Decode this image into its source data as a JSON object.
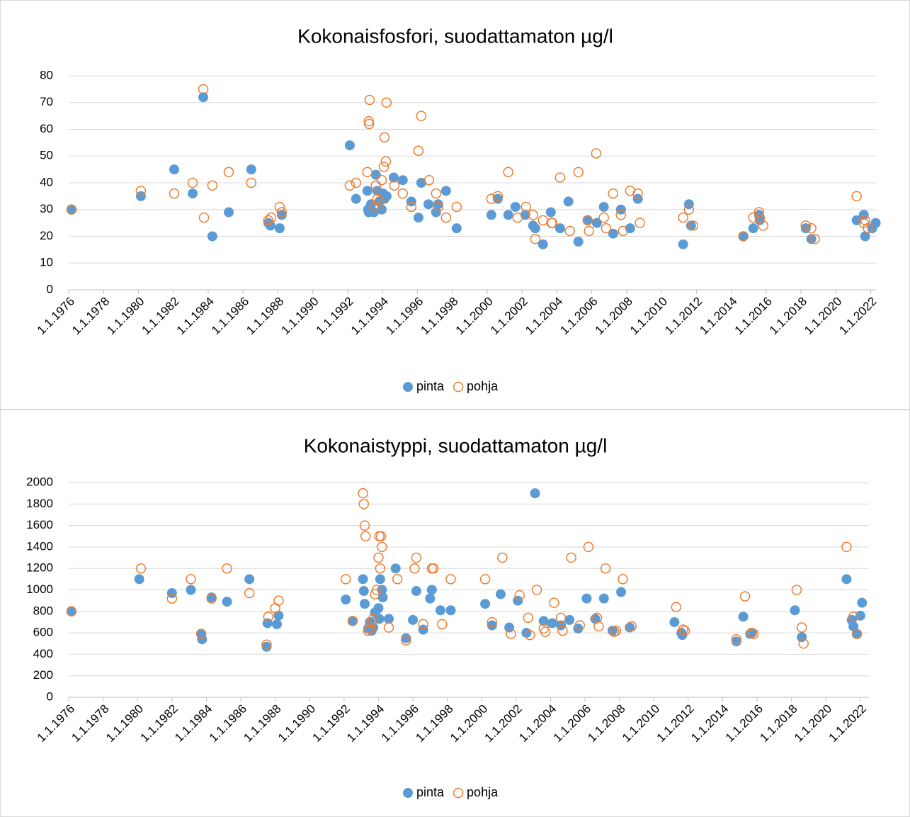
{
  "chart_data": [
    {
      "type": "scatter",
      "title": "Kokonaisfosfori, suodattamaton µg/l",
      "xlim": [
        1976,
        2022.3
      ],
      "ylim": [
        0,
        80
      ],
      "yticks": [
        0,
        10,
        20,
        30,
        40,
        50,
        60,
        70,
        80
      ],
      "grid": true,
      "legend": "bottom",
      "xticks": [
        {
          "value": 1976,
          "label": "1.1.1976"
        },
        {
          "value": 1978,
          "label": "1.1.1978"
        },
        {
          "value": 1980,
          "label": "1.1.1980"
        },
        {
          "value": 1982,
          "label": "1.1.1982"
        },
        {
          "value": 1984,
          "label": "1.1.1984"
        },
        {
          "value": 1986,
          "label": "1.1.1986"
        },
        {
          "value": 1988,
          "label": "1.1.1988"
        },
        {
          "value": 1990,
          "label": "1.1.1990"
        },
        {
          "value": 1992,
          "label": "1.1.1992"
        },
        {
          "value": 1994,
          "label": "1.1.1994"
        },
        {
          "value": 1996,
          "label": "1.1.1996"
        },
        {
          "value": 1998,
          "label": "1.1.1998"
        },
        {
          "value": 2000,
          "label": "1.1.2000"
        },
        {
          "value": 2002,
          "label": "1.1.2002"
        },
        {
          "value": 2004,
          "label": "1.1.2004"
        },
        {
          "value": 2006,
          "label": "1.1.2006"
        },
        {
          "value": 2008,
          "label": "1.1.2008"
        },
        {
          "value": 2010,
          "label": "1.1.2010"
        },
        {
          "value": 2012,
          "label": "1.1.2012"
        },
        {
          "value": 2014,
          "label": "1.1.2014"
        },
        {
          "value": 2016,
          "label": "1.1.2016"
        },
        {
          "value": 2018,
          "label": "1.1.2018"
        },
        {
          "value": 2020,
          "label": "1.1.2020"
        },
        {
          "value": 2022,
          "label": "1.1.2022"
        }
      ],
      "series": [
        {
          "name": "pinta",
          "color": "#5b9bd5",
          "marker": "filled",
          "x": [
            1976.16,
            1980.14,
            1982.05,
            1983.11,
            1983.72,
            1984.24,
            1985.18,
            1986.47,
            1987.45,
            1987.57,
            1988.1,
            1988.22,
            1992.12,
            1992.48,
            1993.13,
            1993.17,
            1993.21,
            1993.34,
            1993.5,
            1993.62,
            1993.7,
            1993.82,
            1993.95,
            1994.03,
            1994.11,
            1994.23,
            1994.64,
            1995.16,
            1995.65,
            1996.06,
            1996.22,
            1996.63,
            1997.07,
            1997.19,
            1997.64,
            1998.25,
            2000.24,
            2000.61,
            2001.21,
            2001.62,
            2002.19,
            2002.63,
            2002.76,
            2003.2,
            2003.65,
            2004.18,
            2004.66,
            2005.23,
            2005.76,
            2006.29,
            2006.69,
            2007.22,
            2007.67,
            2008.2,
            2008.64,
            2011.24,
            2011.57,
            2011.69,
            2014.69,
            2015.26,
            2015.59,
            2015.63,
            2018.27,
            2018.59,
            2021.19,
            2021.6,
            2021.68,
            2022.08,
            2022.28
          ],
          "values": [
            30,
            35,
            45,
            36,
            72,
            20,
            29,
            45,
            25,
            24,
            23,
            28,
            54,
            34,
            37,
            30,
            29,
            32,
            29,
            43,
            37,
            33,
            30,
            36,
            34,
            35,
            42,
            41,
            33,
            27,
            40,
            32,
            29,
            32,
            37,
            23,
            28,
            34,
            28,
            31,
            28,
            24,
            23,
            17,
            29,
            23,
            33,
            18,
            26,
            25,
            31,
            21,
            30,
            23,
            34,
            17,
            32,
            24,
            20,
            23,
            28,
            26,
            23,
            19,
            26,
            28,
            20,
            23,
            25
          ]
        },
        {
          "name": "pohja",
          "color": "#ed7d31",
          "marker": "hollow",
          "x": [
            1976.16,
            1980.14,
            1982.05,
            1983.11,
            1983.72,
            1983.76,
            1984.24,
            1985.18,
            1986.47,
            1987.45,
            1987.61,
            1988.1,
            1988.22,
            1992.12,
            1992.48,
            1993.13,
            1993.21,
            1993.23,
            1993.26,
            1993.54,
            1993.62,
            1993.7,
            1993.82,
            1993.95,
            1994.07,
            1994.11,
            1994.19,
            1994.23,
            1994.68,
            1995.16,
            1995.65,
            1996.06,
            1996.22,
            1996.67,
            1997.07,
            1997.19,
            1997.64,
            1998.25,
            2000.24,
            2000.61,
            2001.21,
            2001.74,
            2002.23,
            2002.63,
            2002.76,
            2003.2,
            2003.69,
            2003.73,
            2004.18,
            2004.74,
            2005.23,
            2005.76,
            2005.84,
            2006.25,
            2006.69,
            2006.82,
            2007.22,
            2007.67,
            2007.79,
            2008.2,
            2008.64,
            2008.76,
            2011.24,
            2011.57,
            2011.81,
            2014.69,
            2015.26,
            2015.59,
            2015.63,
            2015.83,
            2018.27,
            2018.59,
            2018.79,
            2021.19,
            2021.6,
            2021.68,
            2021.84
          ],
          "values": [
            30,
            37,
            36,
            40,
            75,
            27,
            39,
            44,
            40,
            26,
            27,
            31,
            29,
            39,
            40,
            44,
            63,
            62,
            71,
            31,
            39,
            34,
            33,
            41,
            46,
            57,
            48,
            70,
            39,
            36,
            31,
            52,
            65,
            41,
            36,
            31,
            27,
            31,
            34,
            35,
            44,
            27,
            31,
            28,
            19,
            26,
            25,
            25,
            42,
            22,
            44,
            26,
            22,
            51,
            27,
            23,
            36,
            28,
            22,
            37,
            36,
            25,
            27,
            30,
            24,
            20,
            27,
            29,
            27,
            24,
            24,
            23,
            19,
            35,
            25,
            26,
            23
          ]
        }
      ]
    },
    {
      "type": "scatter",
      "title": "Kokonaistyppi, suodattamaton µg/l",
      "xlim": [
        1976,
        2022.5
      ],
      "ylim": [
        0,
        2000
      ],
      "yticks": [
        0,
        200,
        400,
        600,
        800,
        1000,
        1200,
        1400,
        1600,
        1800,
        2000
      ],
      "grid": true,
      "legend": "bottom",
      "xticks": [
        {
          "value": 1976,
          "label": "1.1.1976"
        },
        {
          "value": 1978,
          "label": "1.1.1978"
        },
        {
          "value": 1980,
          "label": "1.1.1980"
        },
        {
          "value": 1982,
          "label": "1.1.1982"
        },
        {
          "value": 1984,
          "label": "1.1.1984"
        },
        {
          "value": 1986,
          "label": "1.1.1986"
        },
        {
          "value": 1988,
          "label": "1.1.1988"
        },
        {
          "value": 1990,
          "label": "1.1.1990"
        },
        {
          "value": 1992,
          "label": "1.1.1992"
        },
        {
          "value": 1994,
          "label": "1.1.1994"
        },
        {
          "value": 1996,
          "label": "1.1.1996"
        },
        {
          "value": 1998,
          "label": "1.1.1998"
        },
        {
          "value": 2000,
          "label": "1.1.2000"
        },
        {
          "value": 2002,
          "label": "1.1.2002"
        },
        {
          "value": 2004,
          "label": "1.1.2004"
        },
        {
          "value": 2006,
          "label": "1.1.2006"
        },
        {
          "value": 2008,
          "label": "1.1.2008"
        },
        {
          "value": 2010,
          "label": "1.1.2010"
        },
        {
          "value": 2012,
          "label": "1.1.2012"
        },
        {
          "value": 2014,
          "label": "1.1.2014"
        },
        {
          "value": 2016,
          "label": "1.1.2016"
        },
        {
          "value": 2018,
          "label": "1.1.2018"
        },
        {
          "value": 2020,
          "label": "1.1.2020"
        },
        {
          "value": 2022,
          "label": "1.1.2022"
        }
      ],
      "series": [
        {
          "name": "pinta",
          "color": "#5b9bd5",
          "marker": "filled",
          "x": [
            1976.16,
            1980.1,
            1982.0,
            1983.1,
            1983.7,
            1983.75,
            1984.3,
            1985.2,
            1986.5,
            1987.5,
            1987.55,
            1988.1,
            1988.2,
            1992.1,
            1992.5,
            1993.1,
            1993.15,
            1993.2,
            1993.4,
            1993.5,
            1993.6,
            1993.7,
            1993.8,
            1994.0,
            1994.05,
            1994.1,
            1994.2,
            1994.25,
            1994.6,
            1995.0,
            1995.6,
            1996.0,
            1996.2,
            1996.6,
            1997.0,
            1997.1,
            1997.6,
            1998.2,
            2000.2,
            2000.6,
            2001.1,
            2001.6,
            2002.1,
            2002.6,
            2003.1,
            2003.6,
            2004.1,
            2004.6,
            2005.1,
            2005.6,
            2006.1,
            2006.6,
            2007.1,
            2007.6,
            2008.1,
            2008.6,
            2011.2,
            2011.6,
            2011.65,
            2014.8,
            2015.2,
            2015.6,
            2015.7,
            2018.2,
            2018.6,
            2021.2,
            2021.5,
            2021.6,
            2021.8,
            2022.0,
            2022.1
          ],
          "values": [
            800,
            1100,
            970,
            1000,
            590,
            540,
            930,
            890,
            1100,
            470,
            690,
            680,
            760,
            910,
            710,
            1100,
            990,
            870,
            640,
            700,
            620,
            650,
            790,
            830,
            730,
            1100,
            1000,
            930,
            730,
            1200,
            550,
            720,
            990,
            630,
            920,
            1000,
            810,
            810,
            870,
            670,
            960,
            650,
            900,
            600,
            1900,
            710,
            690,
            670,
            720,
            640,
            920,
            730,
            920,
            620,
            980,
            650,
            700,
            600,
            580,
            520,
            750,
            590,
            600,
            810,
            560,
            1100,
            720,
            660,
            590,
            760,
            880
          ]
        },
        {
          "name": "pohja",
          "color": "#ed7d31",
          "marker": "hollow",
          "x": [
            1976.16,
            1980.2,
            1982.0,
            1983.1,
            1983.7,
            1984.3,
            1985.2,
            1986.5,
            1987.5,
            1987.6,
            1988.0,
            1988.2,
            1992.1,
            1992.5,
            1993.1,
            1993.15,
            1993.2,
            1993.25,
            1993.4,
            1993.5,
            1993.6,
            1993.7,
            1993.8,
            1993.9,
            1994.0,
            1994.05,
            1994.1,
            1994.15,
            1994.2,
            1994.6,
            1995.1,
            1995.6,
            1996.1,
            1996.2,
            1996.6,
            1997.1,
            1997.2,
            1997.7,
            1998.2,
            2000.2,
            2000.6,
            2001.2,
            2001.7,
            2002.2,
            2002.7,
            2002.8,
            2003.2,
            2003.6,
            2003.7,
            2004.2,
            2004.6,
            2004.7,
            2005.2,
            2005.7,
            2006.2,
            2006.7,
            2006.8,
            2007.2,
            2007.7,
            2007.8,
            2008.2,
            2008.7,
            2011.3,
            2011.7,
            2011.8,
            2014.8,
            2015.3,
            2015.7,
            2015.8,
            2018.3,
            2018.6,
            2018.7,
            2021.2,
            2021.6,
            2021.8
          ],
          "values": [
            800,
            1200,
            920,
            1100,
            590,
            920,
            1200,
            970,
            490,
            750,
            830,
            900,
            1100,
            710,
            1900,
            1800,
            1600,
            1500,
            620,
            640,
            700,
            730,
            960,
            1000,
            1300,
            1500,
            1200,
            1500,
            1400,
            650,
            1100,
            530,
            1200,
            1300,
            680,
            1200,
            1200,
            680,
            1100,
            1100,
            700,
            1300,
            590,
            950,
            740,
            580,
            1000,
            640,
            610,
            880,
            740,
            620,
            1300,
            670,
            1400,
            740,
            660,
            1200,
            610,
            620,
            1100,
            660,
            840,
            630,
            620,
            540,
            940,
            600,
            590,
            1000,
            650,
            500,
            1400,
            750,
            590
          ]
        }
      ]
    }
  ]
}
